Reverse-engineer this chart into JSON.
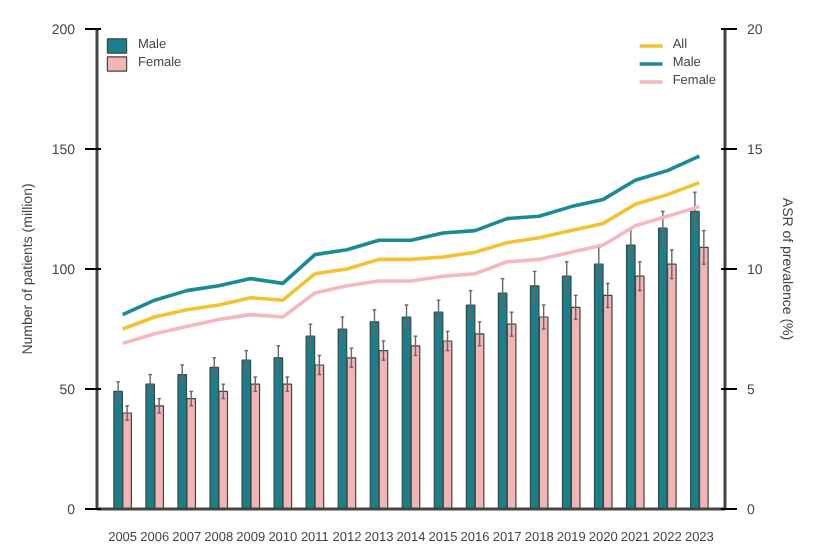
{
  "chart_data": {
    "type": "bar",
    "ylabel": "Number of patients (million)",
    "y2label": "ASR of prevalence (%)",
    "categories": [
      "2005",
      "2006",
      "2007",
      "2008",
      "2009",
      "2010",
      "2011",
      "2012",
      "2013",
      "2014",
      "2015",
      "2016",
      "2017",
      "2018",
      "2019",
      "2020",
      "2021",
      "2022",
      "2023"
    ],
    "ylim": [
      0,
      200
    ],
    "yticks": [
      0,
      50,
      100,
      150,
      200
    ],
    "y2lim": [
      0,
      20
    ],
    "y2ticks": [
      0,
      5,
      10,
      15,
      20
    ],
    "grid": false,
    "legend": "top",
    "series": [
      {
        "name": "Male",
        "color": "#1a7f8a",
        "values": [
          49,
          52,
          56,
          59,
          62,
          63,
          72,
          75,
          78,
          80,
          82,
          85,
          90,
          93,
          97,
          102,
          110,
          117,
          124
        ],
        "errors": [
          4,
          4,
          4,
          4,
          4,
          5,
          5,
          5,
          5,
          5,
          5,
          6,
          6,
          6,
          6,
          7,
          7,
          7,
          8
        ]
      },
      {
        "name": "Female",
        "color": "#f2b5b5",
        "values": [
          40,
          43,
          46,
          49,
          52,
          52,
          60,
          63,
          66,
          68,
          70,
          73,
          77,
          80,
          84,
          89,
          97,
          102,
          109
        ],
        "errors": [
          3,
          3,
          3,
          3,
          3,
          3,
          4,
          4,
          4,
          4,
          4,
          5,
          5,
          5,
          5,
          5,
          6,
          6,
          7
        ]
      },
      {
        "name": "All",
        "type": "line",
        "axis": "y2",
        "color": "#f2c230",
        "values": [
          7.5,
          8.0,
          8.3,
          8.5,
          8.8,
          8.7,
          9.8,
          10.0,
          10.4,
          10.4,
          10.5,
          10.7,
          11.1,
          11.3,
          11.6,
          11.9,
          12.7,
          13.1,
          13.6
        ]
      },
      {
        "name": "Male",
        "type": "line",
        "axis": "y2",
        "color": "#1a8a95",
        "values": [
          8.1,
          8.7,
          9.1,
          9.3,
          9.6,
          9.4,
          10.6,
          10.8,
          11.2,
          11.2,
          11.5,
          11.6,
          12.1,
          12.2,
          12.6,
          12.9,
          13.7,
          14.1,
          14.7
        ]
      },
      {
        "name": "Female",
        "type": "line",
        "axis": "y2",
        "color": "#f4b8c0",
        "values": [
          6.9,
          7.3,
          7.6,
          7.9,
          8.1,
          8.0,
          9.0,
          9.3,
          9.5,
          9.5,
          9.7,
          9.8,
          10.3,
          10.4,
          10.7,
          11.0,
          11.8,
          12.2,
          12.6
        ]
      }
    ]
  }
}
